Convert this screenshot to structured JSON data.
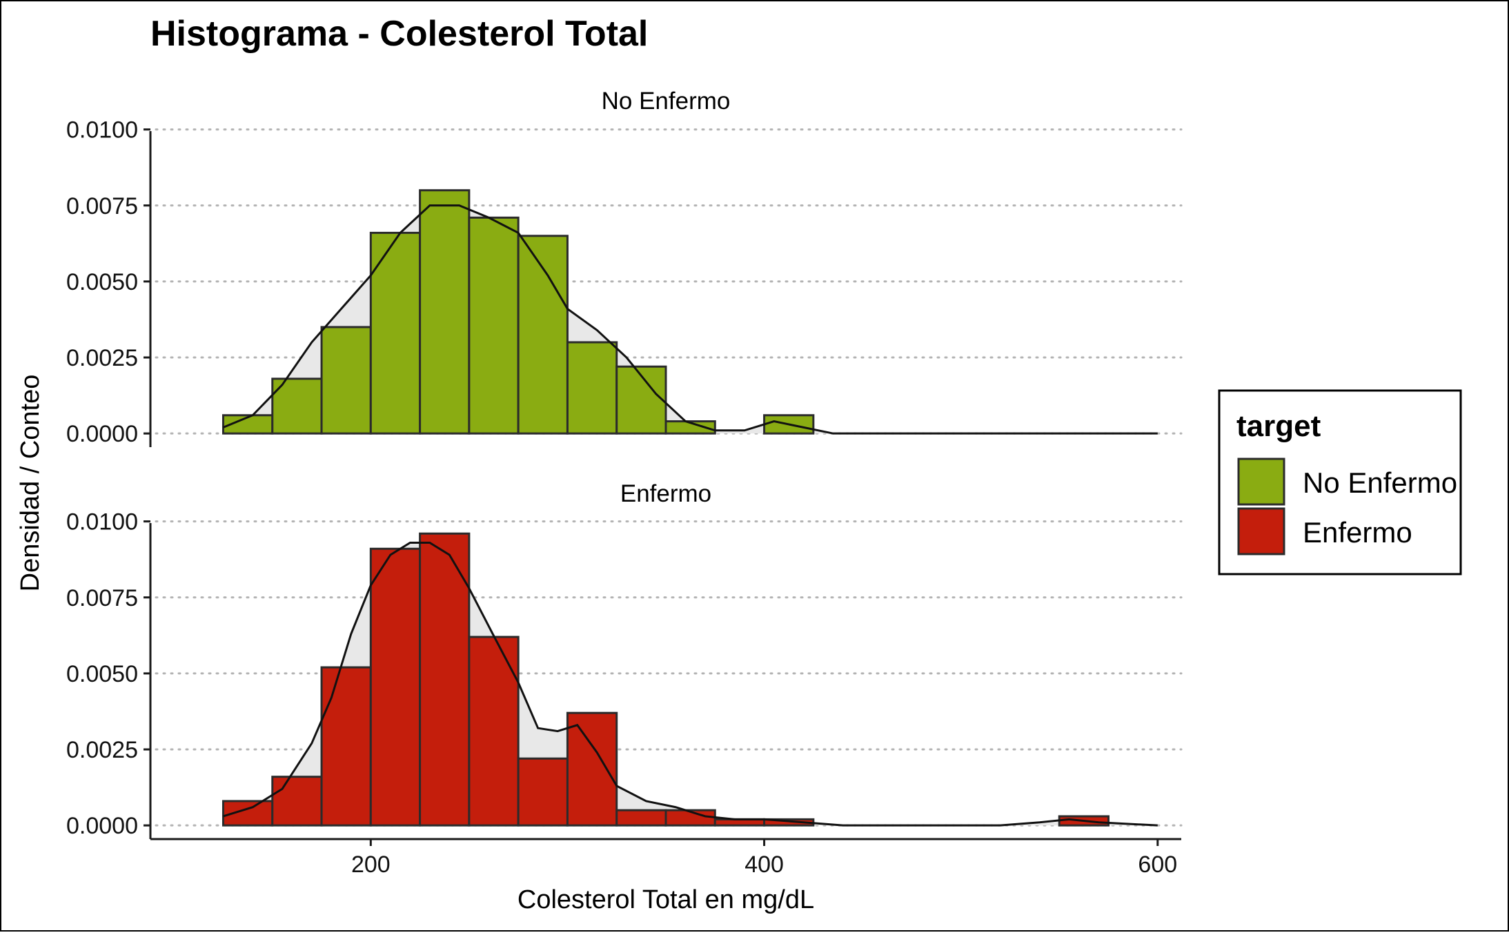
{
  "chart_data": {
    "type": "bar",
    "subtype": "faceted histogram with density overlay",
    "title": "Histograma - Colesterol Total",
    "xlabel": "Colesterol Total en mg/dL",
    "ylabel": "Densidad / Conteo",
    "xlim": [
      88,
      612
    ],
    "ylim": [
      -0.00045,
      0.0104
    ],
    "x_ticks": [
      200,
      400,
      600
    ],
    "x_tick_labels": [
      "200",
      "400",
      "600"
    ],
    "y_ticks": [
      0,
      0.0025,
      0.005,
      0.0075,
      0.01
    ],
    "y_tick_labels": [
      "0.0000",
      "0.0025",
      "0.0050",
      "0.0075",
      "0.0100"
    ],
    "grid": "horizontal dotted",
    "bin_width": 25,
    "bin_edges": [
      125,
      150,
      175,
      200,
      225,
      250,
      275,
      300,
      325,
      350,
      375,
      400,
      425,
      450,
      475,
      500,
      525,
      550,
      575
    ],
    "legend": {
      "title": "target",
      "position": "right",
      "entries": [
        {
          "label": "No Enfermo",
          "color": "#8aac12"
        },
        {
          "label": "Enfermo",
          "color": "#c41e0c"
        }
      ]
    },
    "series": [
      {
        "name": "No Enfermo",
        "facet_label": "No Enfermo",
        "color": "#8aac12",
        "values": [
          0.0006,
          0.0018,
          0.0035,
          0.0066,
          0.008,
          0.0071,
          0.0065,
          0.003,
          0.0022,
          0.0004,
          0.0,
          0.0006,
          0.0,
          0.0,
          0.0,
          0.0,
          0.0,
          0.0
        ],
        "density": {
          "x": [
            125,
            140,
            155,
            170,
            185,
            200,
            215,
            230,
            245,
            260,
            275,
            290,
            300,
            315,
            330,
            345,
            360,
            375,
            390,
            405,
            420,
            435,
            450,
            600
          ],
          "y": [
            0.0002,
            0.0006,
            0.0016,
            0.003,
            0.0041,
            0.0052,
            0.0066,
            0.0075,
            0.0075,
            0.0071,
            0.0066,
            0.0052,
            0.0041,
            0.0034,
            0.0025,
            0.0013,
            0.0004,
            0.0001,
            0.0001,
            0.0004,
            0.0002,
            0.0,
            0.0,
            0.0
          ]
        }
      },
      {
        "name": "Enfermo",
        "facet_label": "Enfermo",
        "color": "#c41e0c",
        "values": [
          0.0008,
          0.0016,
          0.0052,
          0.0091,
          0.0096,
          0.0062,
          0.0022,
          0.0037,
          0.0005,
          0.0005,
          0.0002,
          0.0002,
          0.0,
          0.0,
          0.0,
          0.0,
          0.0,
          0.0003
        ],
        "density": {
          "x": [
            125,
            140,
            155,
            170,
            180,
            190,
            200,
            210,
            220,
            230,
            240,
            250,
            262,
            275,
            285,
            295,
            305,
            315,
            325,
            340,
            355,
            370,
            385,
            400,
            420,
            440,
            470,
            500,
            520,
            540,
            555,
            570,
            600
          ],
          "y": [
            0.0003,
            0.0006,
            0.0012,
            0.0027,
            0.0042,
            0.0063,
            0.0079,
            0.0089,
            0.0093,
            0.0093,
            0.0089,
            0.0078,
            0.0063,
            0.0047,
            0.0032,
            0.0031,
            0.0033,
            0.0024,
            0.0013,
            0.0008,
            0.0006,
            0.0003,
            0.0002,
            0.0002,
            0.0001,
            0.0,
            0.0,
            0.0,
            0.0,
            0.0001,
            0.0002,
            0.0001,
            0.0
          ]
        }
      }
    ]
  },
  "styles": {
    "background": "#ffffff",
    "density_fill": "#e8e8e8",
    "bar_border": "#2b2b2b",
    "grid_color": "#b3b3b3",
    "axis_color": "#1a1a1a"
  }
}
